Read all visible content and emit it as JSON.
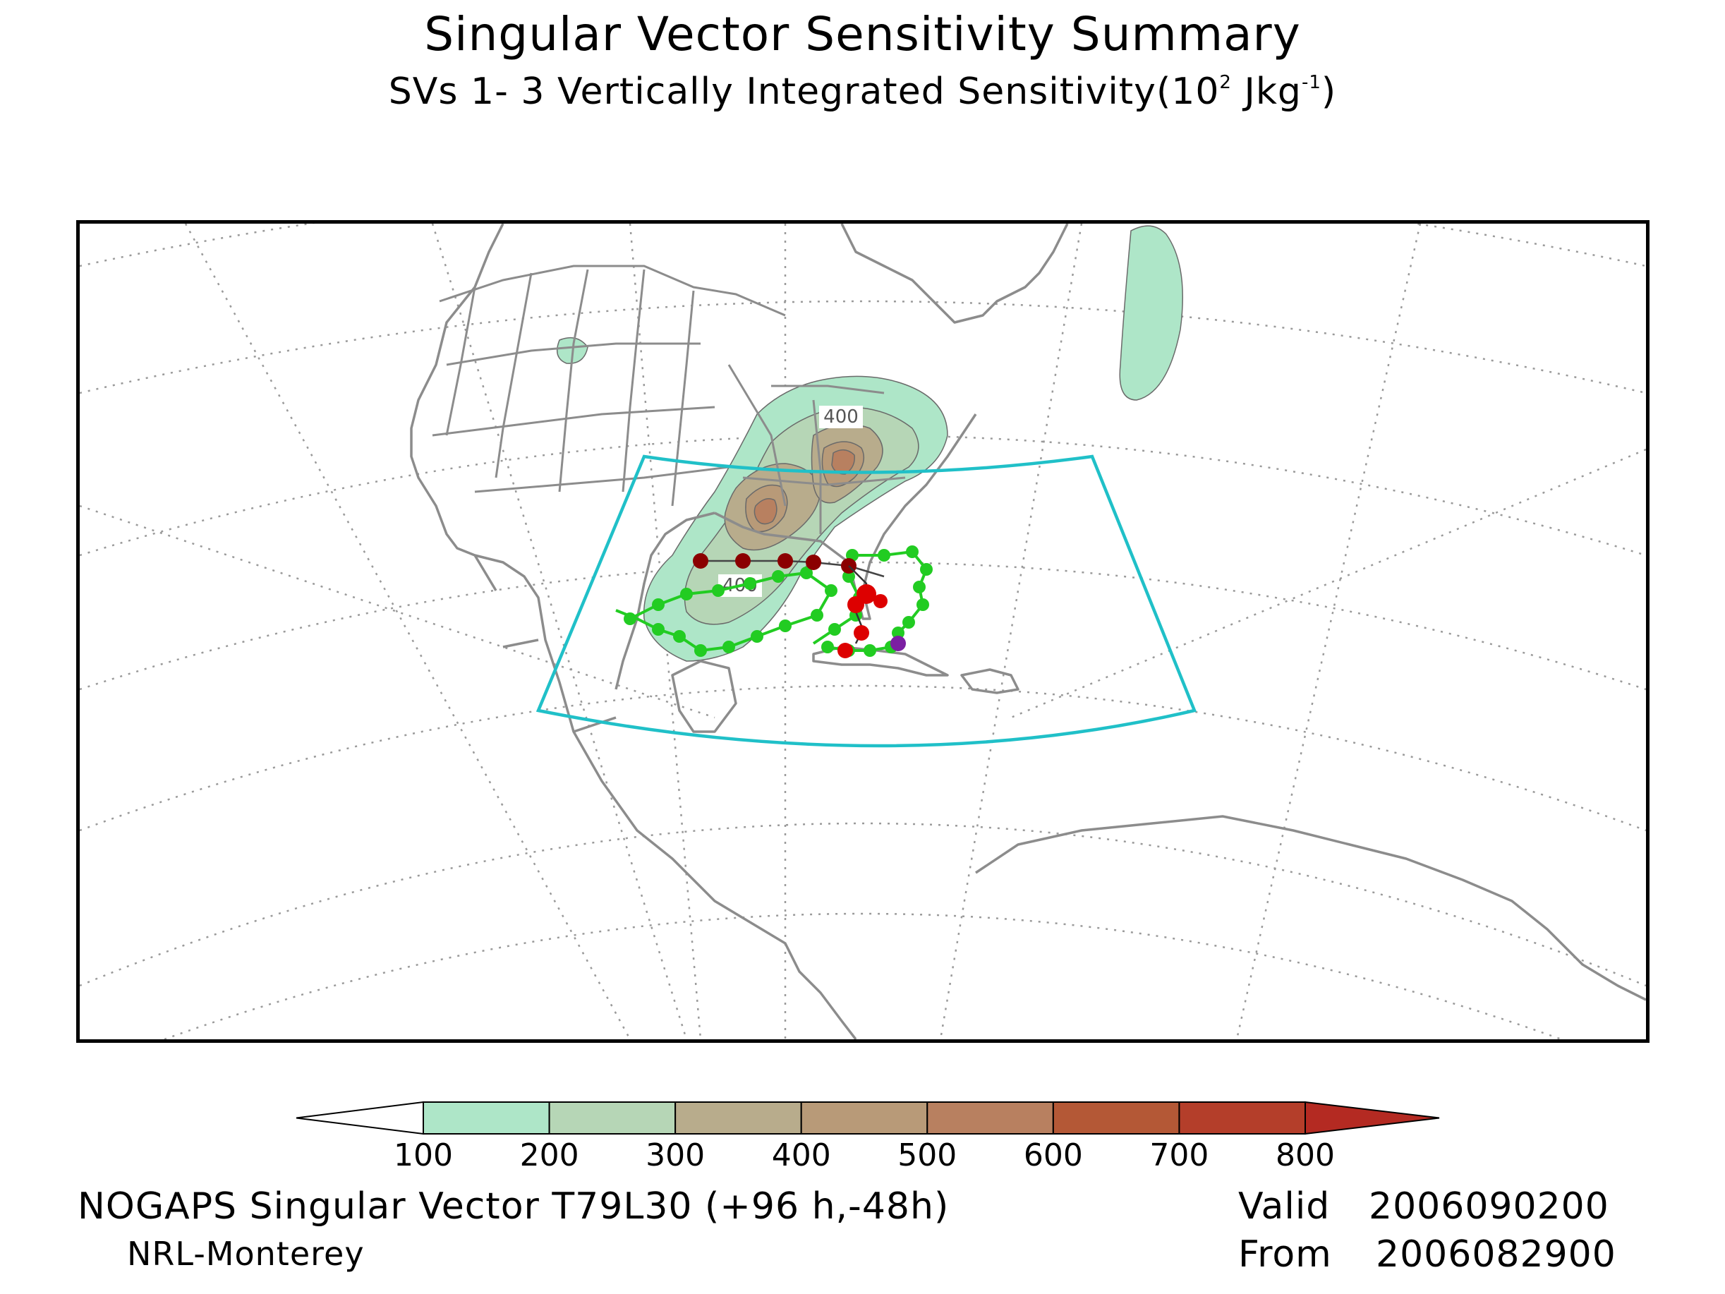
{
  "title": "Singular Vector Sensitivity Summary",
  "subtitle_main": "SVs 1- 3  Vertically Integrated Sensitivity(10",
  "subtitle_exp": "2",
  "subtitle_unit": " Jkg",
  "subtitle_unit_exp": "-1",
  "subtitle_close": ")",
  "map": {
    "contour_labels": [
      "400",
      "400"
    ],
    "colors": {
      "coast": "#8c8c8c",
      "grid": "#9a9a9a",
      "verification_box": "#20c0c8",
      "track_observed": "#8b0000",
      "track_ensemble": "#22cc22",
      "track_forecast": "#dd0000",
      "storm_marker": "#7b1fa2"
    }
  },
  "colorbar": {
    "ticks": [
      "100",
      "200",
      "300",
      "400",
      "500",
      "600",
      "700",
      "800"
    ],
    "colors": [
      "#ffffff",
      "#aee6c8",
      "#b6d6b6",
      "#b8ac8c",
      "#b89a78",
      "#b88060",
      "#b45836",
      "#b43e2a",
      "#b42a22"
    ]
  },
  "footer": {
    "model": "NOGAPS Singular Vector T79L30 (+96 h,-48h)",
    "org": "NRL-Monterey",
    "valid_label": "Valid",
    "valid_value": "2006090200",
    "from_label": "From",
    "from_value": "2006082900"
  }
}
